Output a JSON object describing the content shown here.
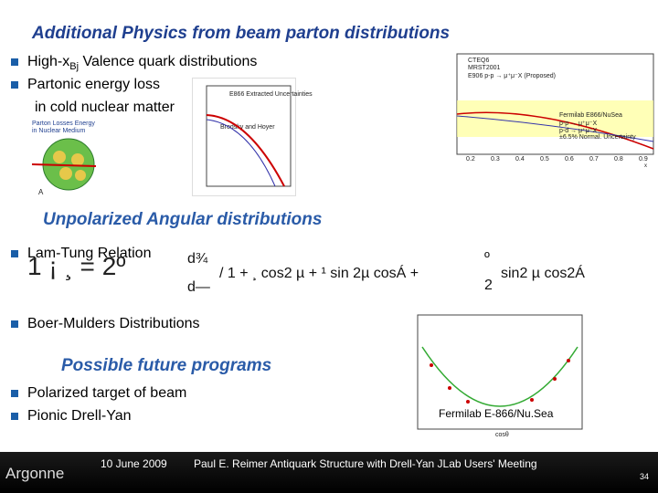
{
  "title": "Additional Physics from beam parton distributions",
  "bullets_top": [
    {
      "text": "High-x",
      "sub": "Bj",
      "rest": " Valence quark distributions"
    },
    {
      "text": "Partonic energy loss",
      "sub": "",
      "rest": ""
    }
  ],
  "bullet_top_continuation": "in cold nuclear matter",
  "heading_unpolarized": "Unpolarized Angular distributions",
  "bullet_lam_tung": "Lam-Tung Relation",
  "equation": {
    "lhs": "1 ¡ ¸ = 2º",
    "numerator": "d¾",
    "denominator": "d—",
    "rhs": "/  1 + ¸ cos2 µ + ¹ sin 2µ cosÁ +",
    "frac_top": "º",
    "frac_bottom": "2",
    "tail": "sin2 µ cos2Á"
  },
  "bullet_boer_mulders": "Boer-Mulders Distributions",
  "heading_future": "Possible future programs",
  "bullets_future": [
    "Polarized target of beam",
    "Pionic Drell-Yan"
  ],
  "figures": {
    "nucleus_caption": [
      "Parton Losses Energy",
      "in Nuclear Medium"
    ],
    "nucleus_label": "A",
    "eloss_legend": [
      "E866 Extracted Uncertainties",
      "Brodsky and Hoyer"
    ],
    "ratio_legend": [
      "CTEQ6",
      "MRST2001",
      "E906 p-p → μ⁺μ⁻X (Proposed)",
      "Fermilab E866/NuSea",
      "p-p → μ⁺μ⁻X",
      "p-d → μ⁺μ⁻X",
      "±6.5% Normal. Uncertainty"
    ],
    "ratio_xticks": [
      "0.2",
      "0.3",
      "0.4",
      "0.5",
      "0.6",
      "0.7",
      "0.8",
      "0.9"
    ],
    "ratio_xlabel": "x",
    "angular_label": "Fermilab E-866/Nu.Sea",
    "angular_xlabel": "cosθ"
  },
  "footer": {
    "logo": "Argonne",
    "date": "10 June 2009",
    "text": "Paul E. Reimer  Antiquark Structure with Drell-Yan JLab Users' Meeting",
    "page": "34"
  }
}
